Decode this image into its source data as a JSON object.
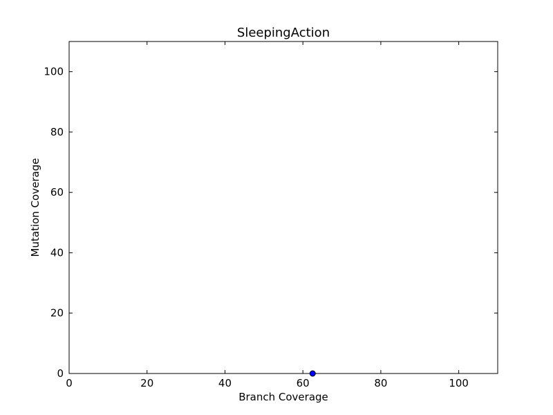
{
  "chart_data": {
    "type": "scatter",
    "title": "SleepingAction",
    "xlabel": "Branch Coverage",
    "ylabel": "Mutation Coverage",
    "xlim": [
      0,
      110
    ],
    "ylim": [
      0,
      110
    ],
    "xticks": [
      0,
      20,
      40,
      60,
      80,
      100
    ],
    "yticks": [
      0,
      20,
      40,
      60,
      80,
      100
    ],
    "grid": false,
    "points": [
      {
        "x": 62.5,
        "y": 0
      }
    ],
    "point_color": "#0000ff"
  }
}
